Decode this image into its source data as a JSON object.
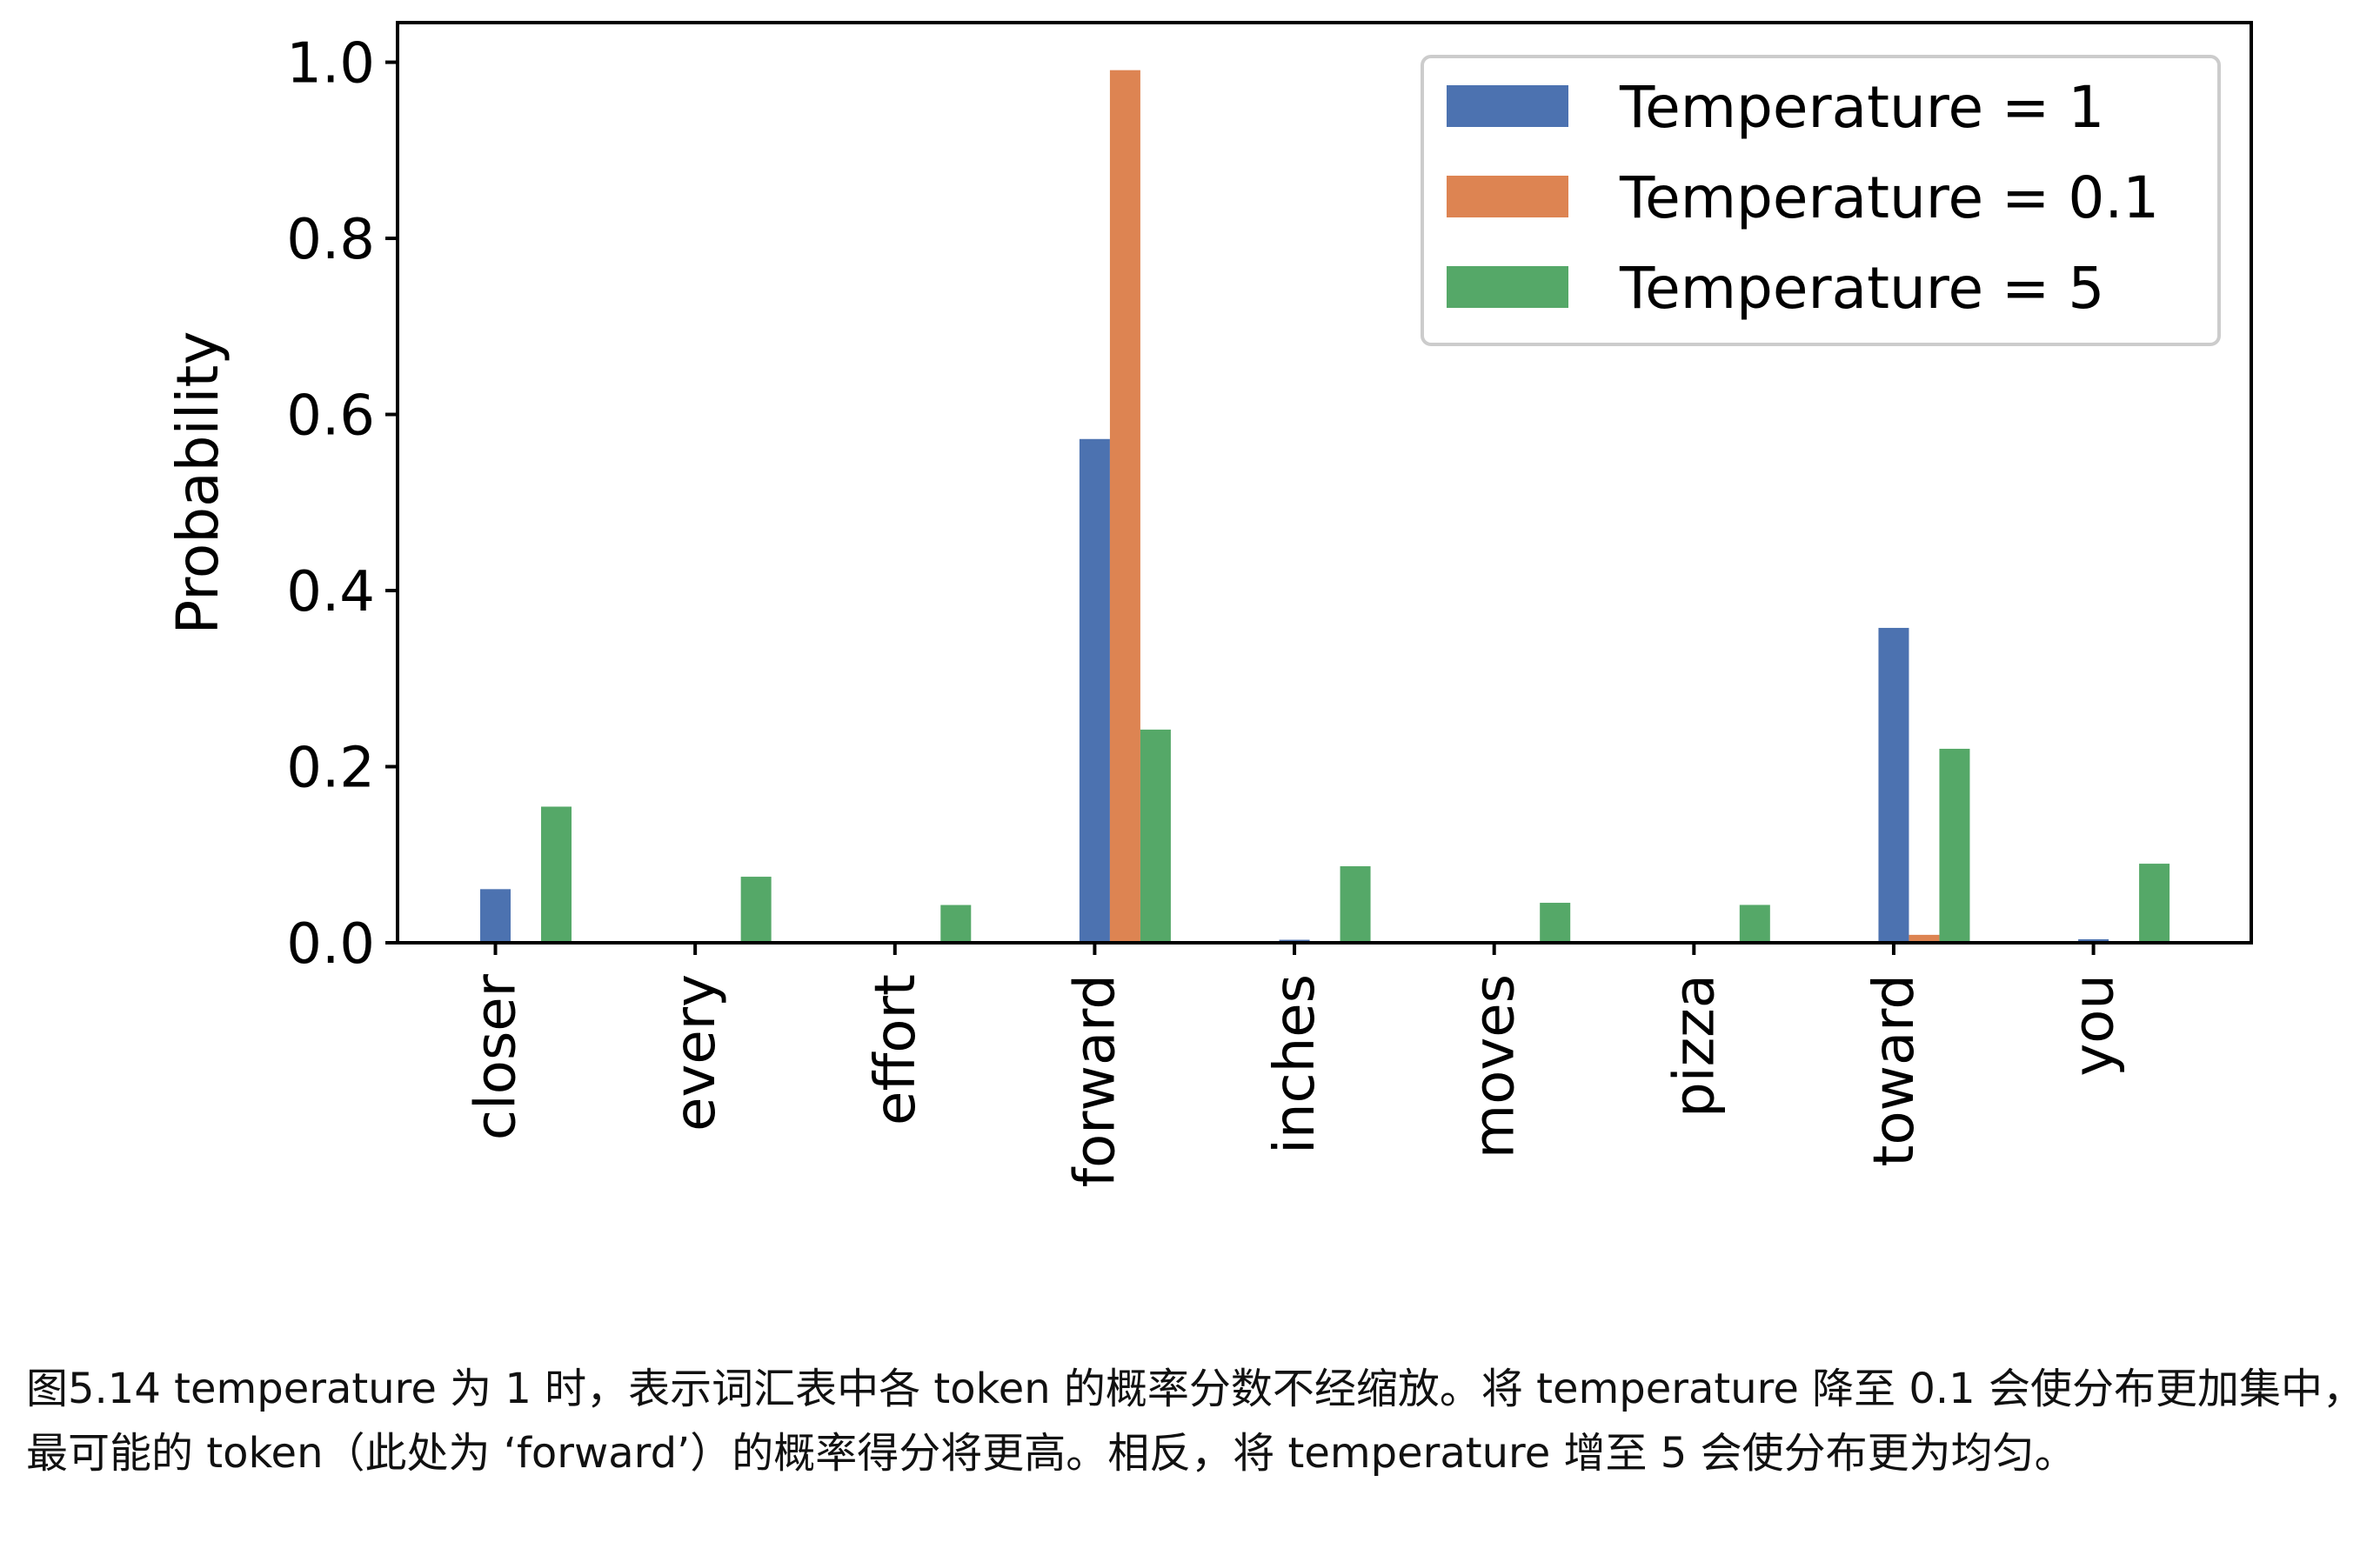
{
  "chart_data": {
    "type": "bar",
    "categories": [
      "closer",
      "every",
      "effort",
      "forward",
      "inches",
      "moves",
      "pizza",
      "toward",
      "you"
    ],
    "series": [
      {
        "name": "Temperature = 1",
        "color": "#4c72b0",
        "values": [
          0.0609,
          0.0016,
          0.0001,
          0.5721,
          0.0034,
          0.0001,
          0.0,
          0.3576,
          0.004
        ]
      },
      {
        "name": "Temperature = 0.1",
        "color": "#dd8452",
        "values": [
          0.0,
          0.0,
          0.0,
          0.991,
          0.0,
          0.0,
          0.0,
          0.009,
          0.0
        ]
      },
      {
        "name": "Temperature = 5",
        "color": "#55a868",
        "values": [
          0.1546,
          0.075,
          0.0429,
          0.2421,
          0.0869,
          0.0454,
          0.043,
          0.2203,
          0.0898
        ]
      }
    ],
    "title": "",
    "xlabel": "",
    "ylabel": "Probability",
    "ylim": [
      0,
      1.045
    ],
    "yticks": [
      "0.0",
      "0.2",
      "0.4",
      "0.6",
      "0.8",
      "1.0"
    ],
    "grid": false,
    "legend": "top-right"
  },
  "caption": "图5.14 temperature 为 1 时，表示词汇表中各 token 的概率分数不经缩放。将 temperature 降至 0.1 会使分布更加集中，最可能的 token（此处为 ‘forward’）的概率得分将更高。相反，将 temperature 增至 5 会使分布更为均匀。"
}
